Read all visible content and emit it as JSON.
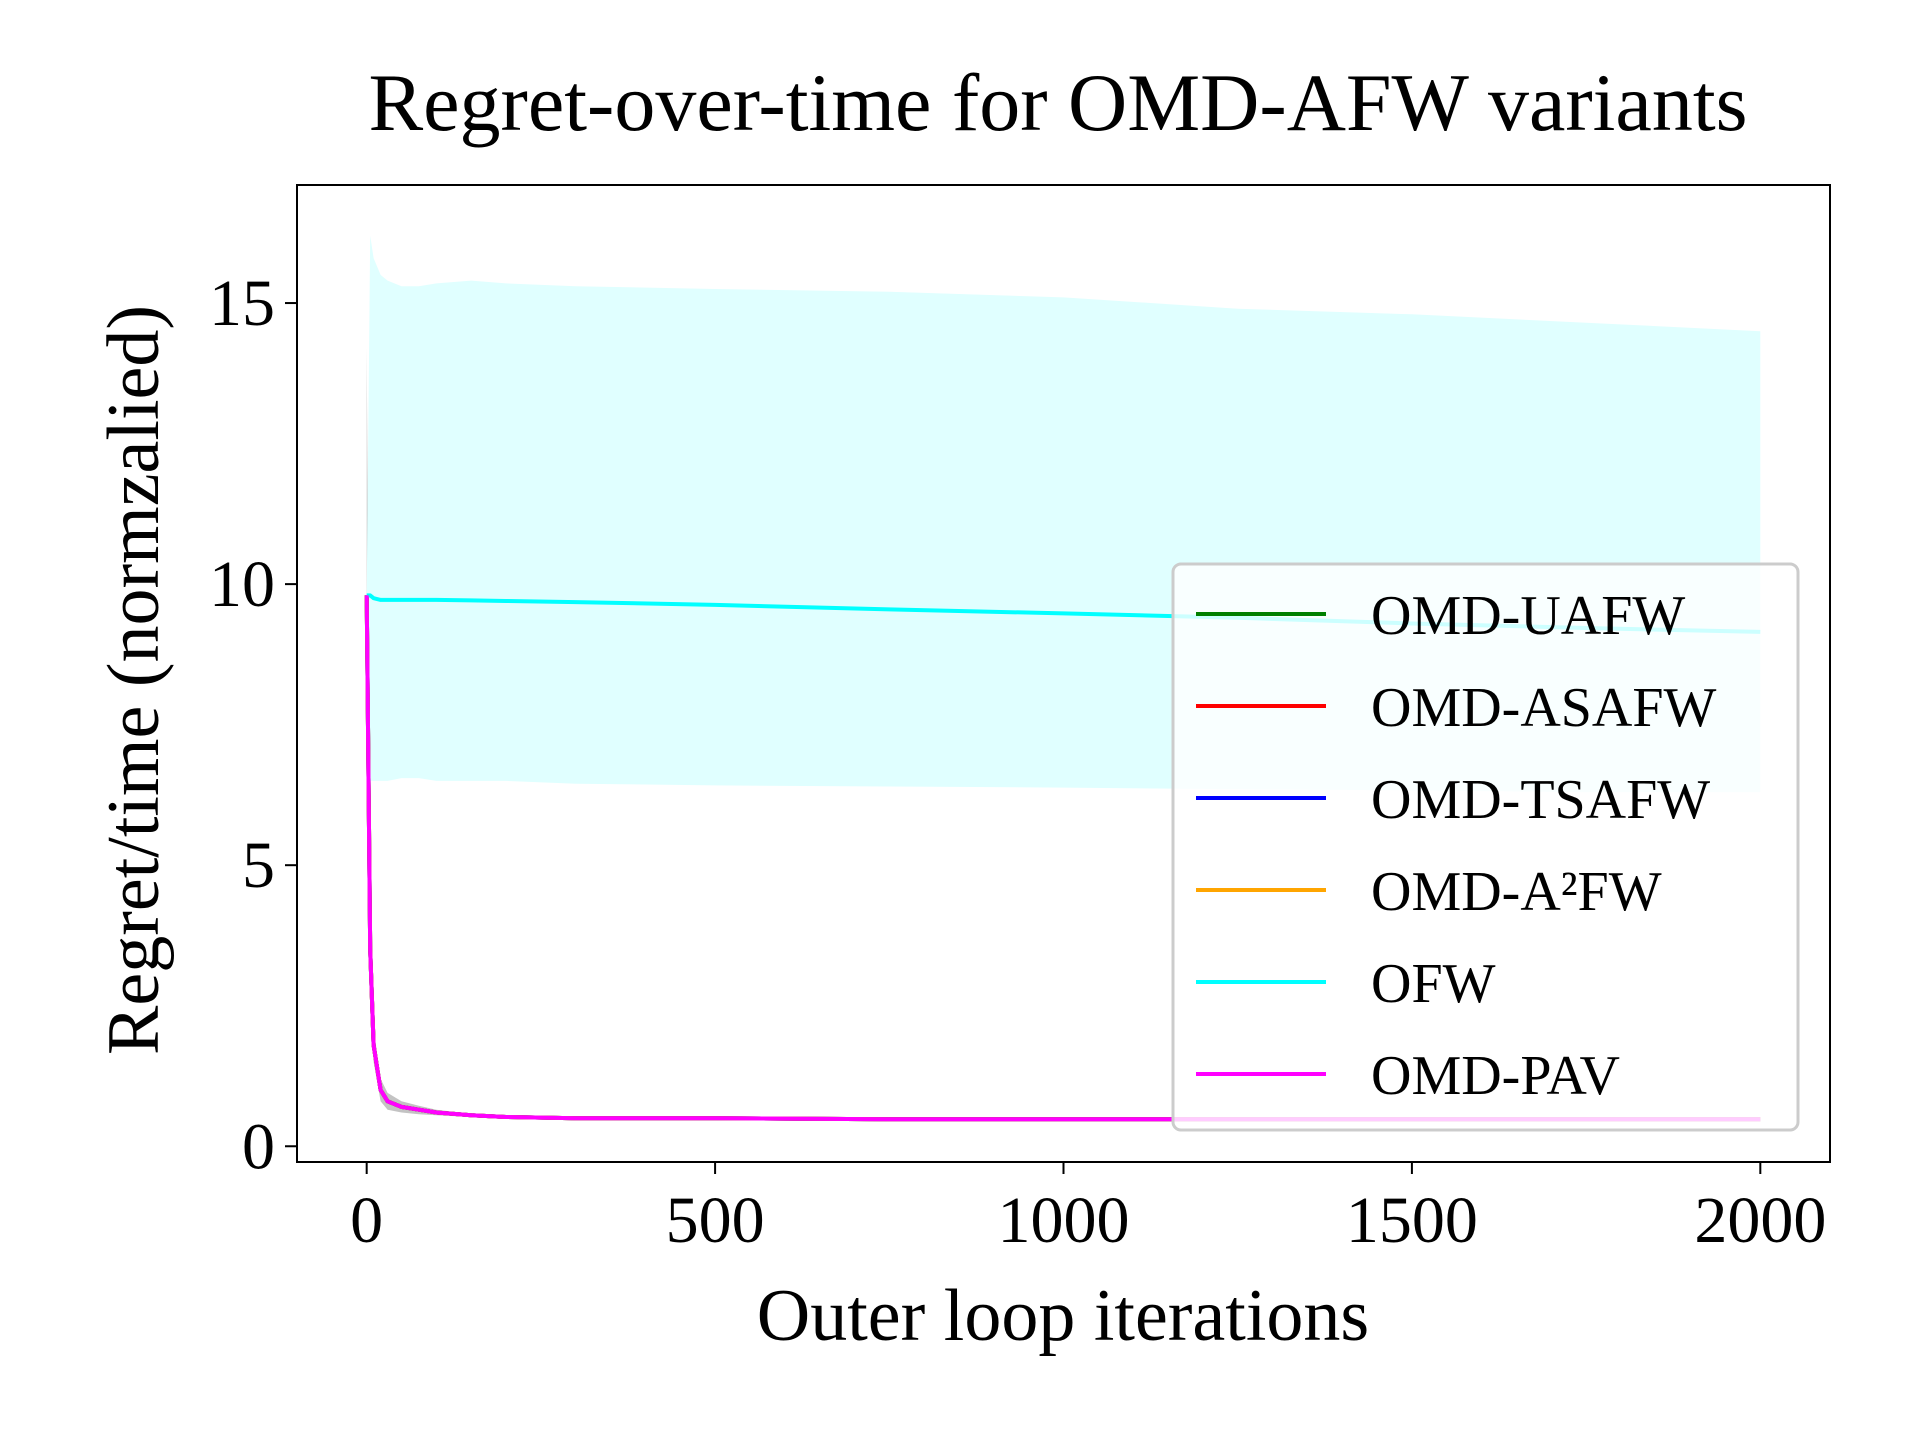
{
  "chart_data": {
    "type": "line",
    "title": "Regret-over-time for OMD-AFW variants",
    "xlabel": "Outer loop iterations",
    "ylabel": "Regret/time (normzalied)",
    "x": [
      0,
      5,
      10,
      20,
      30,
      50,
      75,
      100,
      150,
      200,
      300,
      500,
      750,
      1000,
      1250,
      1500,
      1750,
      2000
    ],
    "xlim": [
      -100,
      2100
    ],
    "xticks": [
      0,
      500,
      1000,
      1500,
      2000
    ],
    "ylim": [
      -0.28,
      17.1
    ],
    "yticks": [
      0,
      5,
      10,
      15
    ],
    "legend": "lower right",
    "series": [
      {
        "name": "OMD-UAFW",
        "color": "#008000",
        "band_color": "#a9a9a9",
        "values": [
          9.8,
          3.5,
          1.8,
          1.0,
          0.8,
          0.7,
          0.65,
          0.6,
          0.55,
          0.52,
          0.5,
          0.5,
          0.48,
          0.48,
          0.48,
          0.48,
          0.48,
          0.48
        ],
        "upper": [
          14.2,
          4.0,
          2.1,
          1.2,
          0.95,
          0.8,
          0.72,
          0.65,
          0.58,
          0.54,
          0.51,
          0.5,
          0.49,
          0.49,
          0.49,
          0.49,
          0.49,
          0.49
        ],
        "lower": [
          9.8,
          3.0,
          1.5,
          0.8,
          0.65,
          0.6,
          0.57,
          0.55,
          0.52,
          0.5,
          0.49,
          0.48,
          0.47,
          0.47,
          0.47,
          0.47,
          0.47,
          0.47
        ]
      },
      {
        "name": "OMD-ASAFW",
        "color": "#ff0000",
        "values": [
          9.8,
          3.5,
          1.8,
          1.0,
          0.8,
          0.7,
          0.65,
          0.6,
          0.55,
          0.52,
          0.5,
          0.5,
          0.48,
          0.48,
          0.48,
          0.48,
          0.48,
          0.48
        ]
      },
      {
        "name": "OMD-TSAFW",
        "color": "#0000ff",
        "values": [
          9.8,
          3.5,
          1.8,
          1.0,
          0.8,
          0.7,
          0.65,
          0.6,
          0.55,
          0.52,
          0.5,
          0.5,
          0.48,
          0.48,
          0.48,
          0.48,
          0.48,
          0.48
        ]
      },
      {
        "name": "OMD-A²FW",
        "color": "#ffa500",
        "values": [
          9.8,
          3.5,
          1.8,
          1.0,
          0.8,
          0.7,
          0.65,
          0.6,
          0.55,
          0.52,
          0.5,
          0.5,
          0.48,
          0.48,
          0.48,
          0.48,
          0.48,
          0.48
        ]
      },
      {
        "name": "OFW",
        "color": "#00ffff",
        "band_color": "#e0ffff",
        "values": [
          9.8,
          9.8,
          9.75,
          9.72,
          9.72,
          9.72,
          9.72,
          9.72,
          9.71,
          9.7,
          9.68,
          9.63,
          9.55,
          9.48,
          9.4,
          9.3,
          9.22,
          9.15
        ],
        "upper": [
          9.8,
          16.2,
          15.8,
          15.5,
          15.4,
          15.3,
          15.3,
          15.35,
          15.4,
          15.35,
          15.3,
          15.25,
          15.2,
          15.1,
          14.9,
          14.8,
          14.65,
          14.5
        ],
        "lower": [
          9.8,
          6.5,
          6.5,
          6.5,
          6.5,
          6.55,
          6.55,
          6.5,
          6.5,
          6.5,
          6.45,
          6.42,
          6.4,
          6.38,
          6.35,
          6.33,
          6.3,
          6.3
        ]
      },
      {
        "name": "OMD-PAV",
        "color": "#ff00ff",
        "values": [
          9.8,
          3.5,
          1.8,
          1.0,
          0.8,
          0.7,
          0.65,
          0.6,
          0.55,
          0.52,
          0.5,
          0.5,
          0.48,
          0.48,
          0.48,
          0.48,
          0.48,
          0.48
        ]
      }
    ]
  }
}
